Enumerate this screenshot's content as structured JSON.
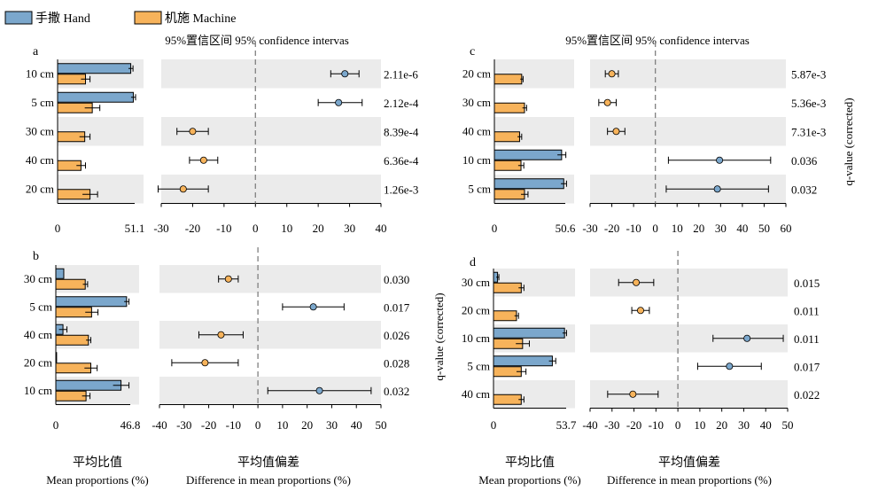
{
  "legend": {
    "items": [
      {
        "label": "手撒 Hand",
        "color": "#7BA7CC"
      },
      {
        "label": "机施 Machine",
        "color": "#F7B35B"
      }
    ]
  },
  "footer": {
    "left_cn": "平均比值",
    "left_en": "Mean proportions (%)",
    "right_cn": "平均值偏差",
    "right_en": "Difference in mean proportions (%)"
  },
  "side_label": "q-value (corrected)",
  "colors": {
    "hand": "#7BA7CC",
    "machine": "#F7B35B",
    "band": "#EBEBEB",
    "dashed": "#808080"
  },
  "chart_data": [
    {
      "panel": "a",
      "type": "bar",
      "title": "95%置信区间 95% confidence intervas",
      "categories": [
        "10 cm",
        "5 cm",
        "30 cm",
        "40 cm",
        "20 cm"
      ],
      "series": [
        {
          "name": "手撒 Hand",
          "values": [
            48.5,
            50.2,
            0,
            0,
            0
          ],
          "errors": [
            1.5,
            1.5,
            0,
            0,
            0
          ]
        },
        {
          "name": "机施 Machine",
          "values": [
            18.5,
            23.0,
            18.0,
            15.5,
            21.5
          ],
          "errors": [
            3.0,
            5.0,
            3.5,
            3.0,
            5.0
          ]
        }
      ],
      "bar_xlim": [
        0,
        51.1
      ],
      "bar_ticks": [
        "0",
        "51.1"
      ],
      "ci": [
        {
          "diff": 28.5,
          "low": 24,
          "high": 33,
          "favor": "hand"
        },
        {
          "diff": 26.5,
          "low": 20,
          "high": 34,
          "favor": "hand"
        },
        {
          "diff": -20,
          "low": -25,
          "high": -15,
          "favor": "machine"
        },
        {
          "diff": -16.5,
          "low": -21,
          "high": -12,
          "favor": "machine"
        },
        {
          "diff": -23,
          "low": -31,
          "high": -15,
          "favor": "machine"
        }
      ],
      "ci_xlim": [
        -30,
        40
      ],
      "ci_ticks": [
        -30,
        -20,
        -10,
        0,
        10,
        20,
        30,
        40
      ],
      "qvalues": [
        "2.11e-6",
        "2.12e-4",
        "8.39e-4",
        "6.36e-4",
        "1.26e-3"
      ]
    },
    {
      "panel": "b",
      "type": "bar",
      "title": "",
      "categories": [
        "30 cm",
        "5 cm",
        "40 cm",
        "20 cm",
        "10 cm"
      ],
      "series": [
        {
          "name": "手撒 Hand",
          "values": [
            5.0,
            44.5,
            4.5,
            0.5,
            41.0
          ],
          "errors": [
            0,
            1.5,
            2.5,
            0,
            5.0
          ]
        },
        {
          "name": "机施 Machine",
          "values": [
            18.5,
            22.5,
            20.5,
            22.0,
            19.0
          ],
          "errors": [
            1.5,
            4.0,
            1.5,
            4.0,
            2.5
          ]
        }
      ],
      "bar_xlim": [
        0,
        46.8
      ],
      "bar_ticks": [
        "0",
        "46.8"
      ],
      "ci": [
        {
          "diff": -12,
          "low": -16,
          "high": -8,
          "favor": "machine"
        },
        {
          "diff": 22.5,
          "low": 10,
          "high": 35,
          "favor": "hand"
        },
        {
          "diff": -15,
          "low": -24,
          "high": -6,
          "favor": "machine"
        },
        {
          "diff": -21.5,
          "low": -35,
          "high": -8,
          "favor": "machine"
        },
        {
          "diff": 25,
          "low": 4,
          "high": 46,
          "favor": "hand"
        }
      ],
      "ci_xlim": [
        -40,
        50
      ],
      "ci_ticks": [
        -40,
        -30,
        -20,
        -10,
        0,
        10,
        20,
        30,
        40,
        50
      ],
      "qvalues": [
        "0.030",
        "0.017",
        "0.026",
        "0.028",
        "0.032"
      ]
    },
    {
      "panel": "c",
      "type": "bar",
      "title": "95%置信区间 95% confidence intervas",
      "categories": [
        "20 cm",
        "30 cm",
        "40 cm",
        "10 cm",
        "5 cm"
      ],
      "series": [
        {
          "name": "手撒 Hand",
          "values": [
            0,
            0,
            0,
            48.0,
            49.5
          ],
          "errors": [
            0,
            0,
            0,
            3.0,
            2.0
          ]
        },
        {
          "name": "机施 Machine",
          "values": [
            19.5,
            21.5,
            18.0,
            19.0,
            21.5
          ],
          "errors": [
            1.0,
            1.5,
            1.5,
            2.0,
            2.5
          ]
        }
      ],
      "bar_xlim": [
        0,
        50.6
      ],
      "bar_ticks": [
        "0",
        "50.6"
      ],
      "ci": [
        {
          "diff": -20,
          "low": -23,
          "high": -17,
          "favor": "machine"
        },
        {
          "diff": -22,
          "low": -26,
          "high": -18,
          "favor": "machine"
        },
        {
          "diff": -18,
          "low": -22,
          "high": -14,
          "favor": "machine"
        },
        {
          "diff": 29.5,
          "low": 6,
          "high": 53,
          "favor": "hand"
        },
        {
          "diff": 28.5,
          "low": 5,
          "high": 52,
          "favor": "hand"
        }
      ],
      "ci_xlim": [
        -30,
        60
      ],
      "ci_ticks": [
        -30,
        -20,
        -10,
        0,
        10,
        20,
        30,
        40,
        50,
        60
      ],
      "qvalues": [
        "5.87e-3",
        "5.36e-3",
        "7.31e-3",
        "0.036",
        "0.032"
      ]
    },
    {
      "panel": "d",
      "type": "bar",
      "title": "",
      "categories": [
        "30 cm",
        "20 cm",
        "10 cm",
        "5 cm",
        "40 cm"
      ],
      "series": [
        {
          "name": "手撒 Hand",
          "values": [
            3.0,
            0,
            52.5,
            43.5,
            0
          ],
          "errors": [
            1.0,
            0,
            1.5,
            2.5,
            0
          ]
        },
        {
          "name": "机施 Machine",
          "values": [
            20.5,
            17.0,
            21.5,
            20.5,
            20.5
          ],
          "errors": [
            2.0,
            1.5,
            5.0,
            3.5,
            2.0
          ]
        }
      ],
      "bar_xlim": [
        0,
        53.7
      ],
      "bar_ticks": [
        "0",
        "53.7"
      ],
      "ci": [
        {
          "diff": -19,
          "low": -27,
          "high": -11,
          "favor": "machine"
        },
        {
          "diff": -17,
          "low": -21,
          "high": -13,
          "favor": "machine"
        },
        {
          "diff": 31.5,
          "low": 16,
          "high": 48,
          "favor": "hand"
        },
        {
          "diff": 23.5,
          "low": 9,
          "high": 38,
          "favor": "hand"
        },
        {
          "diff": -20.5,
          "low": -32,
          "high": -9,
          "favor": "machine"
        }
      ],
      "ci_xlim": [
        -40,
        50
      ],
      "ci_ticks": [
        -40,
        -30,
        -20,
        -10,
        0,
        10,
        20,
        30,
        40,
        50
      ],
      "qvalues": [
        "0.015",
        "0.011",
        "0.011",
        "0.017",
        "0.022"
      ]
    }
  ]
}
